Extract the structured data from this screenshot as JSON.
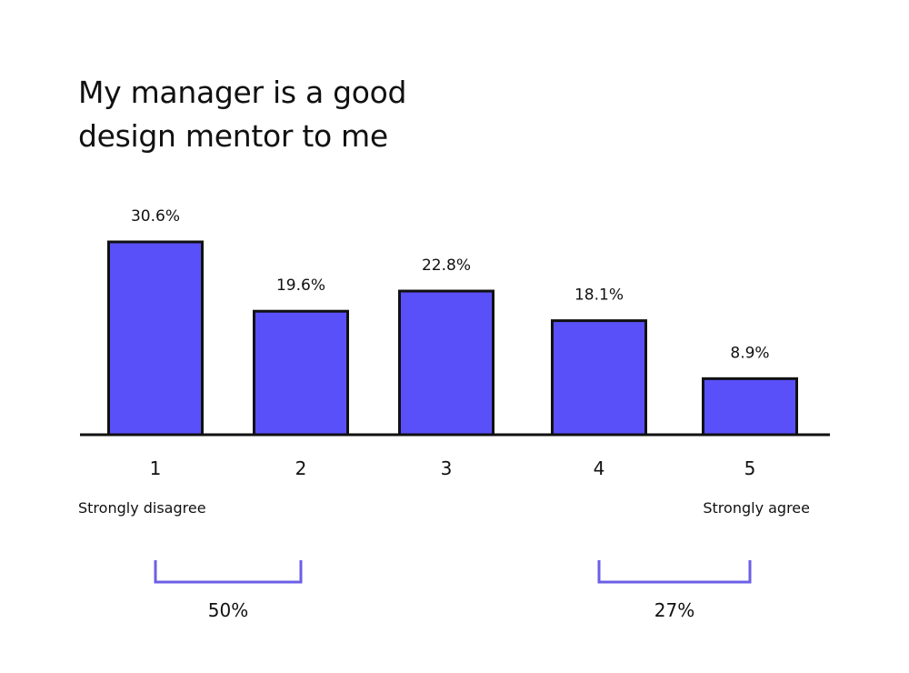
{
  "chart_data": {
    "type": "bar",
    "title_lines": [
      "My manager is a good",
      "design mentor to me"
    ],
    "categories": [
      "1",
      "2",
      "3",
      "4",
      "5"
    ],
    "values": [
      30.6,
      19.6,
      22.8,
      18.1,
      8.9
    ],
    "value_labels": [
      "30.6%",
      "19.6%",
      "22.8%",
      "18.1%",
      "8.9%"
    ],
    "scale_labels": {
      "low": "Strongly disagree",
      "high": "Strongly agree"
    },
    "group_totals": [
      {
        "label": "50%",
        "from_category": "1",
        "to_category": "2"
      },
      {
        "label": "27%",
        "from_category": "4",
        "to_category": "5"
      }
    ],
    "ylim": [
      0,
      30.6
    ],
    "grid": false,
    "colors": {
      "bar_fill": "#5A50F9",
      "bar_stroke": "#111111",
      "bracket": "#6B5FE6",
      "text": "#111111"
    }
  }
}
